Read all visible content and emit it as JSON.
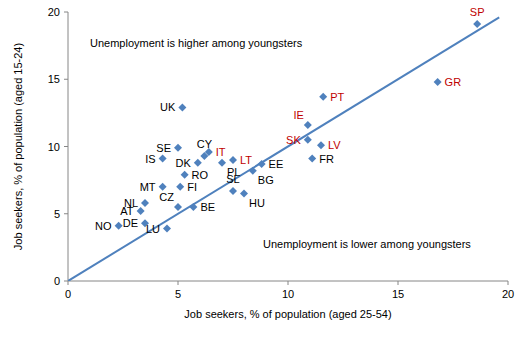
{
  "chart_data": {
    "type": "scatter",
    "x_label": "Job seekers, % of population  (aged 25-54)",
    "y_label": "Job seekers, % of population  (aged 15-24)",
    "annotations": [
      "Unemployment is higher among youngsters",
      "Unemployment is lower among youngsters"
    ],
    "labels": [
      "SP",
      "GR",
      "PT",
      "IE",
      "SK",
      "LV",
      "FR",
      "UK",
      "SE",
      "IS",
      "CY",
      "IT",
      "DK",
      "PL",
      "LT",
      "EE",
      "BG",
      "RO",
      "MT",
      "FI",
      "SL",
      "HU",
      "NL",
      "CZ",
      "BE",
      "AT",
      "NO",
      "DE",
      "LU"
    ],
    "x": [
      18.6,
      16.8,
      11.6,
      10.9,
      10.9,
      11.5,
      11.1,
      5.2,
      5.0,
      4.3,
      6.2,
      6.4,
      5.9,
      7.0,
      7.5,
      8.8,
      8.4,
      5.3,
      4.3,
      5.1,
      7.5,
      8.0,
      3.5,
      5.0,
      5.7,
      3.3,
      2.3,
      3.5,
      4.5
    ],
    "values": [
      19.1,
      14.8,
      13.7,
      11.6,
      10.5,
      10.1,
      9.1,
      12.9,
      9.9,
      9.1,
      9.3,
      9.6,
      8.8,
      8.8,
      9.0,
      8.7,
      8.2,
      7.9,
      7.0,
      7.0,
      6.7,
      6.5,
      5.8,
      5.5,
      5.5,
      5.2,
      4.1,
      4.3,
      3.9
    ],
    "label_colors": [
      "#c00000",
      "#c00000",
      "#c00000",
      "#c00000",
      "#c00000",
      "#c00000",
      "#000000",
      "#000000",
      "#000000",
      "#000000",
      "#000000",
      "#c00000",
      "#000000",
      "#000000",
      "#c00000",
      "#000000",
      "#000000",
      "#000000",
      "#000000",
      "#000000",
      "#000000",
      "#000000",
      "#000000",
      "#000000",
      "#000000",
      "#000000",
      "#000000",
      "#000000",
      "#000000"
    ],
    "color": "#4f81bd",
    "marker": "diamond",
    "reference_line": {
      "x": [
        0,
        19.6
      ],
      "y": [
        0,
        19.6
      ],
      "color": "#4f81bd",
      "line_style": "solid"
    },
    "xlim": [
      0,
      20
    ],
    "ylim": [
      0,
      20
    ],
    "xticks": [
      0,
      5,
      10,
      15,
      20
    ],
    "yticks": [
      0,
      5,
      10,
      15,
      20
    ],
    "grid": false
  }
}
